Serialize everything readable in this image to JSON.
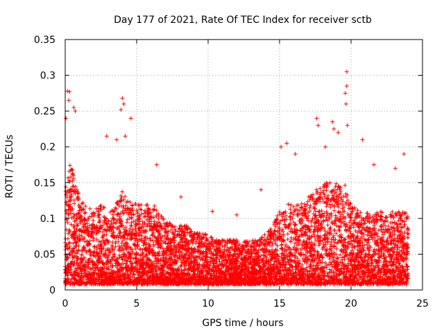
{
  "chart_data": {
    "type": "scatter",
    "title": "Day 177 of 2021, Rate Of TEC Index for receiver sctb",
    "xlabel": "GPS time / hours",
    "ylabel": "ROTI / TECUs",
    "xlim": [
      0,
      25
    ],
    "ylim": [
      0,
      0.35
    ],
    "x_ticks": [
      "0",
      "5",
      "10",
      "15",
      "20",
      "25"
    ],
    "y_ticks": [
      "0",
      "0.05",
      "0.1",
      "0.15",
      "0.2",
      "0.25",
      "0.3",
      "0.35"
    ],
    "grid": true,
    "marker": "+",
    "series": [
      {
        "name": "ROTI",
        "color": "#ff0000",
        "envelope": {
          "hours": [
            0,
            0.2,
            0.5,
            1,
            1.5,
            2,
            2.5,
            3,
            3.5,
            4,
            4.5,
            5,
            5.5,
            6,
            6.5,
            7,
            7.5,
            8,
            8.5,
            9,
            9.5,
            10,
            10.5,
            11,
            11.5,
            12,
            12.5,
            13,
            13.5,
            14,
            14.5,
            15,
            15.5,
            16,
            16.5,
            17,
            17.5,
            18,
            18.5,
            19,
            19.5,
            20,
            20.5,
            21,
            21.5,
            22,
            22.5,
            23,
            23.5,
            24
          ],
          "typical_max": [
            0.14,
            0.18,
            0.17,
            0.13,
            0.12,
            0.11,
            0.12,
            0.11,
            0.12,
            0.14,
            0.13,
            0.12,
            0.12,
            0.12,
            0.12,
            0.1,
            0.09,
            0.09,
            0.09,
            0.08,
            0.08,
            0.08,
            0.07,
            0.07,
            0.07,
            0.07,
            0.07,
            0.07,
            0.07,
            0.08,
            0.09,
            0.11,
            0.12,
            0.12,
            0.12,
            0.13,
            0.14,
            0.15,
            0.15,
            0.15,
            0.15,
            0.13,
            0.11,
            0.11,
            0.11,
            0.11,
            0.11,
            0.11,
            0.11,
            0.11
          ]
        },
        "notable_points": [
          {
            "x": 0.15,
            "y": 0.278
          },
          {
            "x": 0.3,
            "y": 0.277
          },
          {
            "x": 0.25,
            "y": 0.265
          },
          {
            "x": 0.6,
            "y": 0.255
          },
          {
            "x": 0.7,
            "y": 0.25
          },
          {
            "x": 0.05,
            "y": 0.24
          },
          {
            "x": 4.0,
            "y": 0.268
          },
          {
            "x": 4.1,
            "y": 0.26
          },
          {
            "x": 3.9,
            "y": 0.252
          },
          {
            "x": 4.6,
            "y": 0.24
          },
          {
            "x": 4.2,
            "y": 0.215
          },
          {
            "x": 3.6,
            "y": 0.21
          },
          {
            "x": 2.9,
            "y": 0.215
          },
          {
            "x": 6.4,
            "y": 0.175
          },
          {
            "x": 15.1,
            "y": 0.2
          },
          {
            "x": 15.5,
            "y": 0.205
          },
          {
            "x": 16.1,
            "y": 0.19
          },
          {
            "x": 17.6,
            "y": 0.24
          },
          {
            "x": 17.7,
            "y": 0.23
          },
          {
            "x": 18.7,
            "y": 0.235
          },
          {
            "x": 18.8,
            "y": 0.225
          },
          {
            "x": 18.2,
            "y": 0.2
          },
          {
            "x": 19.7,
            "y": 0.305
          },
          {
            "x": 19.7,
            "y": 0.285
          },
          {
            "x": 19.6,
            "y": 0.275
          },
          {
            "x": 19.65,
            "y": 0.26
          },
          {
            "x": 19.75,
            "y": 0.23
          },
          {
            "x": 19.1,
            "y": 0.22
          },
          {
            "x": 20.8,
            "y": 0.21
          },
          {
            "x": 21.6,
            "y": 0.175
          },
          {
            "x": 23.7,
            "y": 0.19
          },
          {
            "x": 23.1,
            "y": 0.17
          },
          {
            "x": 10.3,
            "y": 0.11
          },
          {
            "x": 12.0,
            "y": 0.105
          },
          {
            "x": 13.7,
            "y": 0.14
          },
          {
            "x": 8.1,
            "y": 0.13
          }
        ]
      }
    ]
  }
}
